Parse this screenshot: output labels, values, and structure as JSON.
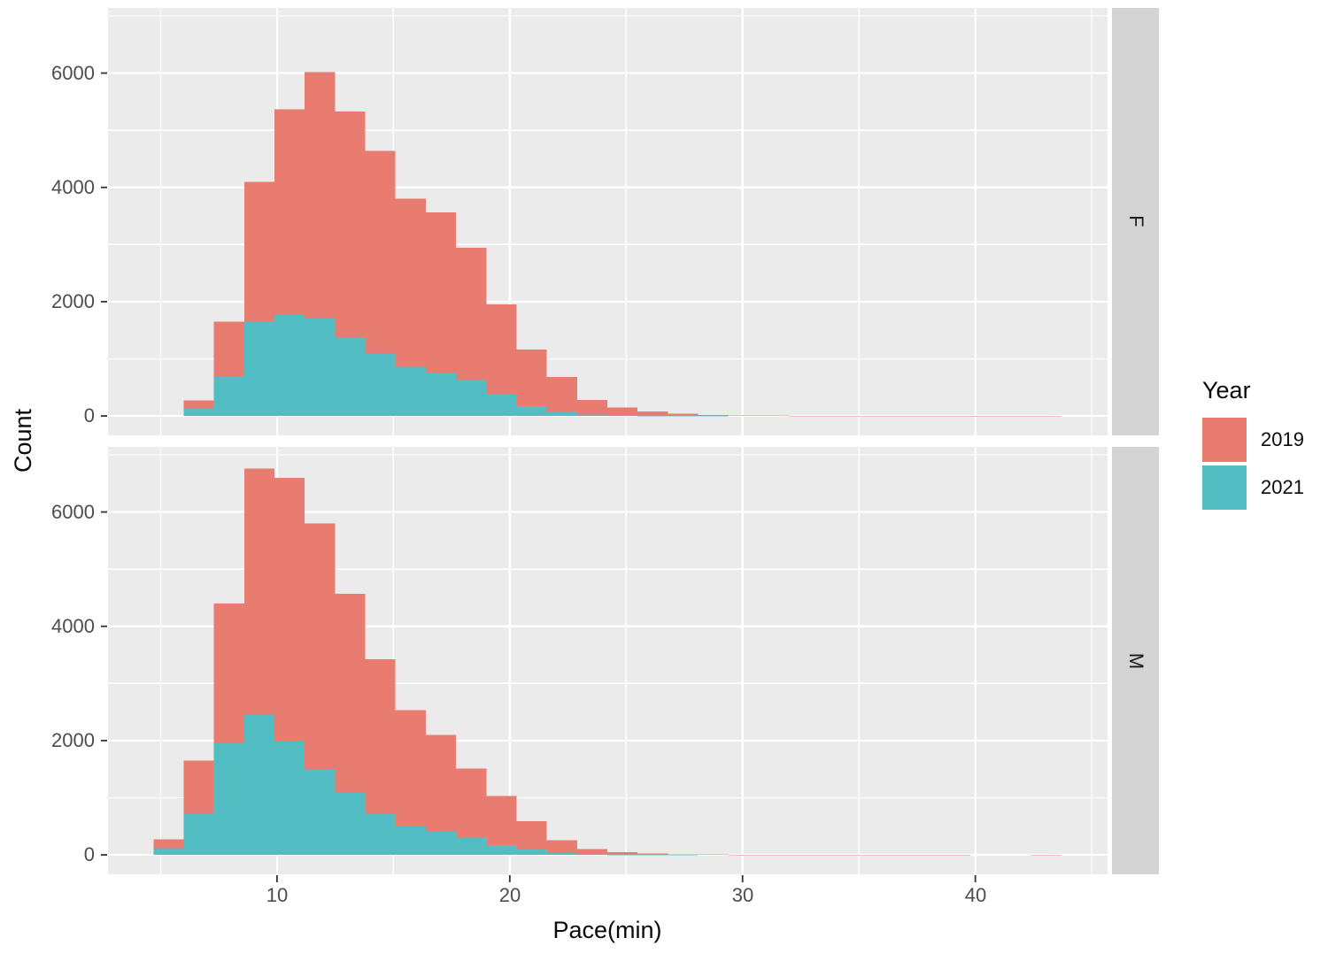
{
  "chart_data": {
    "type": "bar",
    "variant": "overlaid-histogram, faceted by sex (rows F / M), fill by Year, position identity (2021 drawn in front of 2019)",
    "title": "",
    "xlabel": "Pace(min)",
    "ylabel": "Count",
    "x_ticks": [
      10,
      20,
      30,
      40
    ],
    "x_minor_ticks": [
      5,
      15,
      25,
      35,
      45
    ],
    "y_ticks": [
      0,
      2000,
      4000,
      6000
    ],
    "y_minor_ticks": [
      1000,
      3000,
      5000,
      7000
    ],
    "xlim": [
      2.74,
      45.68
    ],
    "ylim": [
      -340,
      7140
    ],
    "grid": true,
    "legend_position": "right",
    "bins": {
      "start": 4.69,
      "width": 1.3,
      "count": 30
    },
    "legend": {
      "title": "Year",
      "entries": [
        {
          "label": "2019",
          "color": "#E97C71"
        },
        {
          "label": "2021",
          "color": "#52BEC3"
        }
      ]
    },
    "facets": [
      {
        "label": "F",
        "series": [
          {
            "name": "2019",
            "color": "#E97C71",
            "values": [
              0,
              270,
              1650,
              4100,
              5370,
              6020,
              5330,
              4640,
              3800,
              3560,
              2940,
              1950,
              1160,
              680,
              280,
              150,
              80,
              40,
              15,
              8,
              5,
              3,
              2,
              2,
              1,
              1,
              1,
              1,
              1,
              1
            ]
          },
          {
            "name": "2021",
            "color": "#52BEC3",
            "values": [
              0,
              130,
              700,
              1650,
              1770,
              1710,
              1370,
              1090,
              860,
              760,
              630,
              380,
              170,
              75,
              25,
              10,
              4,
              2,
              1,
              0,
              0,
              0,
              0,
              0,
              0,
              0,
              0,
              0,
              0,
              0
            ]
          }
        ]
      },
      {
        "label": "M",
        "series": [
          {
            "name": "2019",
            "color": "#E97C71",
            "values": [
              270,
              1650,
              4400,
              6760,
              6600,
              5800,
              4570,
              3420,
              2530,
              2100,
              1510,
              1030,
              590,
              260,
              100,
              50,
              25,
              12,
              6,
              4,
              3,
              2,
              2,
              1,
              1,
              1,
              1,
              0,
              0,
              1
            ]
          },
          {
            "name": "2021",
            "color": "#52BEC3",
            "values": [
              120,
              720,
              1950,
              2450,
              1980,
              1500,
              1090,
              710,
              500,
              400,
              300,
              170,
              90,
              30,
              10,
              4,
              2,
              1,
              0,
              0,
              0,
              0,
              0,
              0,
              0,
              0,
              0,
              0,
              0,
              0
            ]
          }
        ]
      }
    ],
    "style": {
      "panel_bg": "#EBEBEB",
      "strip_bg": "#D4D4D4",
      "grid_color": "#FFFFFF",
      "tick_label_color": "#4D4D4D",
      "axis_title_color": "#0a0a0a",
      "tick_mark_color": "#333333"
    }
  }
}
